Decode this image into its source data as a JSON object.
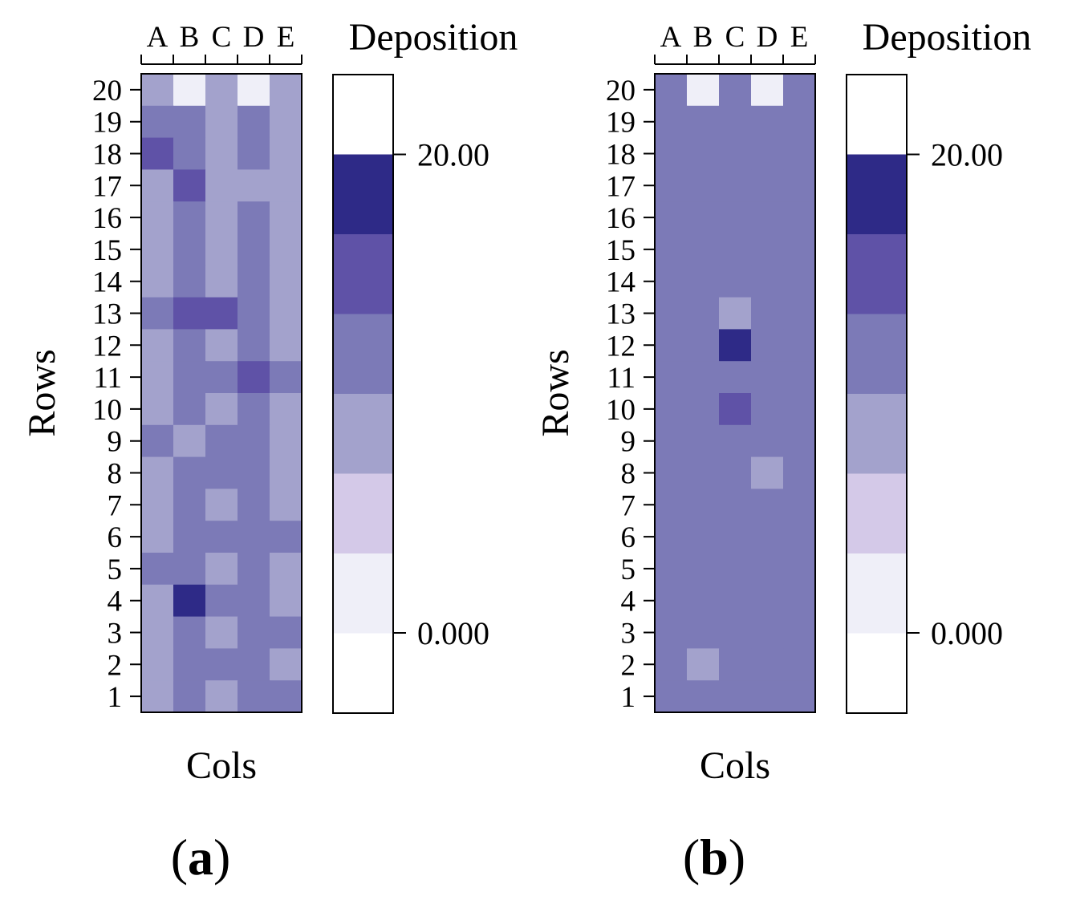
{
  "chart_data": [
    {
      "type": "heatmap",
      "panel_label": "a",
      "xlabel": "Cols",
      "ylabel": "Rows",
      "columns": [
        "A",
        "B",
        "C",
        "D",
        "E"
      ],
      "rows": [
        "1",
        "2",
        "3",
        "4",
        "5",
        "6",
        "7",
        "8",
        "9",
        "10",
        "11",
        "12",
        "13",
        "14",
        "15",
        "16",
        "17",
        "18",
        "19",
        "20"
      ],
      "levels_note": "cell value = deposition level index into legend.levels (0 = lowest band, 6 = highest band)",
      "cells_top_to_bottom": [
        [
          3,
          1,
          3,
          1,
          3
        ],
        [
          4,
          4,
          3,
          4,
          3
        ],
        [
          5,
          4,
          3,
          4,
          3
        ],
        [
          3,
          5,
          3,
          3,
          3
        ],
        [
          3,
          4,
          3,
          4,
          3
        ],
        [
          3,
          4,
          3,
          4,
          3
        ],
        [
          3,
          4,
          3,
          4,
          3
        ],
        [
          4,
          5,
          5,
          4,
          3
        ],
        [
          3,
          4,
          3,
          4,
          3
        ],
        [
          3,
          4,
          4,
          5,
          4
        ],
        [
          3,
          4,
          3,
          4,
          3
        ],
        [
          4,
          3,
          4,
          4,
          3
        ],
        [
          3,
          4,
          4,
          4,
          3
        ],
        [
          3,
          4,
          3,
          4,
          3
        ],
        [
          3,
          4,
          4,
          4,
          4
        ],
        [
          4,
          4,
          3,
          4,
          3
        ],
        [
          3,
          6,
          4,
          4,
          3
        ],
        [
          3,
          4,
          3,
          4,
          4
        ],
        [
          3,
          4,
          4,
          4,
          3
        ],
        [
          3,
          4,
          3,
          4,
          4
        ]
      ],
      "legend": {
        "title": "Deposition",
        "levels": [
          "#ffffff",
          "#efeff8",
          "#d4c9e8",
          "#a3a2cc",
          "#7c7ab7",
          "#5f52a7",
          "#2e2a87",
          "#ffffff"
        ],
        "tick_labels": [
          "0.000",
          "20.00"
        ]
      }
    },
    {
      "type": "heatmap",
      "panel_label": "b",
      "xlabel": "Cols",
      "ylabel": "Rows",
      "columns": [
        "A",
        "B",
        "C",
        "D",
        "E"
      ],
      "rows": [
        "1",
        "2",
        "3",
        "4",
        "5",
        "6",
        "7",
        "8",
        "9",
        "10",
        "11",
        "12",
        "13",
        "14",
        "15",
        "16",
        "17",
        "18",
        "19",
        "20"
      ],
      "levels_note": "cell value = deposition level index into legend.levels (0 = lowest band, 6 = highest band)",
      "cells_top_to_bottom": [
        [
          4,
          1,
          4,
          1,
          4
        ],
        [
          4,
          4,
          4,
          4,
          4
        ],
        [
          4,
          4,
          4,
          4,
          4
        ],
        [
          4,
          4,
          4,
          4,
          4
        ],
        [
          4,
          4,
          4,
          4,
          4
        ],
        [
          4,
          4,
          4,
          4,
          4
        ],
        [
          4,
          4,
          4,
          4,
          4
        ],
        [
          4,
          4,
          3,
          4,
          4
        ],
        [
          4,
          4,
          6,
          4,
          4
        ],
        [
          4,
          4,
          4,
          4,
          4
        ],
        [
          4,
          4,
          5,
          4,
          4
        ],
        [
          4,
          4,
          4,
          4,
          4
        ],
        [
          4,
          4,
          4,
          3,
          4
        ],
        [
          4,
          4,
          4,
          4,
          4
        ],
        [
          4,
          4,
          4,
          4,
          4
        ],
        [
          4,
          4,
          4,
          4,
          4
        ],
        [
          4,
          4,
          4,
          4,
          4
        ],
        [
          4,
          4,
          4,
          4,
          4
        ],
        [
          4,
          3,
          4,
          4,
          4
        ],
        [
          4,
          4,
          4,
          4,
          4
        ]
      ],
      "legend": {
        "title": "Deposition",
        "levels": [
          "#ffffff",
          "#efeff8",
          "#d4c9e8",
          "#a3a2cc",
          "#7c7ab7",
          "#5f52a7",
          "#2e2a87",
          "#ffffff"
        ],
        "tick_labels": [
          "0.000",
          "20.00"
        ]
      }
    }
  ]
}
